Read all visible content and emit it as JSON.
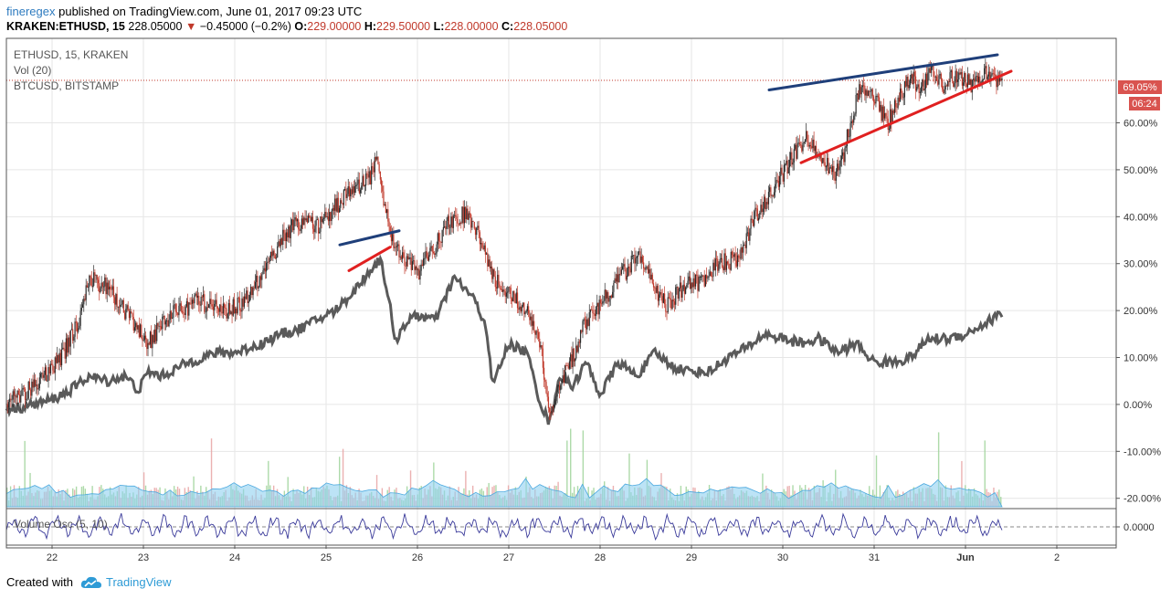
{
  "header": {
    "publisher": "fineregex",
    "published_text": "published on TradingView.com, June 01, 2017 09:23 UTC",
    "symbol": "KRAKEN:ETHUSD, 15",
    "last": "228.05000",
    "change": "−0.45000 (−0.2%)",
    "o_label": "O:",
    "o_value": "229.00000",
    "h_label": "H:",
    "h_value": "229.50000",
    "l_label": "L:",
    "l_value": "228.00000",
    "c_label": "C:",
    "c_value": "228.05000"
  },
  "legend": {
    "main": "ETHUSD, 15, KRAKEN",
    "vol": "Vol (20)",
    "compare": "BTCUSD, BITSTAMP",
    "oscillator": "Volume Osc (5, 10)"
  },
  "price_badge": "69.05%",
  "time_badge": "06:24",
  "colors": {
    "candle_up": "#2a2a2a",
    "candle_down": "#c0392b",
    "btc_line": "#5a5a5a",
    "trend_blue": "#1f3f7a",
    "trend_red": "#e02020",
    "volume_area": "#8fd0f0",
    "volume_bar_up": "#9fd39a",
    "volume_bar_down": "#e8a3a3",
    "osc_line": "#3a3a9a",
    "badge": "#d9534f"
  },
  "footer": {
    "created_with": "Created with",
    "brand": "TradingView"
  },
  "chart_data": {
    "type": "line",
    "ylabel": "",
    "y_unit": "%",
    "ylim": [
      -22,
      78
    ],
    "y_ticks": [
      "60.00%",
      "50.00%",
      "40.00%",
      "30.00%",
      "20.00%",
      "10.00%",
      "0.00%",
      "-10.00%",
      "-20.00%"
    ],
    "y_tick_values": [
      60,
      50,
      40,
      30,
      20,
      10,
      0,
      -10,
      -20
    ],
    "x_ticks": [
      "22",
      "23",
      "24",
      "25",
      "26",
      "27",
      "28",
      "29",
      "30",
      "31",
      "Jun",
      "2"
    ],
    "x_tick_values": [
      22,
      23,
      24,
      25,
      26,
      27,
      28,
      29,
      30,
      31,
      32,
      33
    ],
    "xlim": [
      21.5,
      33.65
    ],
    "grid": true,
    "series": [
      {
        "name": "ETHUSD, 15, KRAKEN",
        "style": "candles",
        "x": [
          21.5,
          21.8,
          22.1,
          22.3,
          22.4,
          22.6,
          22.8,
          22.95,
          23.05,
          23.3,
          23.6,
          23.9,
          24.1,
          24.3,
          24.5,
          24.7,
          24.9,
          25.1,
          25.3,
          25.5,
          25.55,
          25.7,
          25.85,
          26.0,
          26.2,
          26.35,
          26.55,
          26.75,
          26.85,
          27.0,
          27.2,
          27.35,
          27.45,
          27.55,
          27.7,
          27.85,
          27.95,
          28.1,
          28.3,
          28.45,
          28.6,
          28.75,
          28.9,
          29.1,
          29.3,
          29.5,
          29.7,
          29.9,
          30.05,
          30.25,
          30.4,
          30.55,
          30.65,
          30.75,
          30.85,
          31.0,
          31.15,
          31.3,
          31.4,
          31.5,
          31.6,
          31.75,
          31.9,
          32.05,
          32.2,
          32.25,
          32.35,
          32.4
        ],
        "values": [
          0,
          4,
          10,
          18,
          27,
          25,
          20,
          16,
          13,
          19,
          22,
          20,
          22,
          27,
          35,
          39,
          38,
          42,
          46,
          49,
          52,
          36,
          31,
          28,
          34,
          39,
          41,
          32,
          26,
          24,
          20,
          12,
          -3,
          4,
          10,
          18,
          20,
          24,
          29,
          32,
          24,
          21,
          25,
          26,
          30,
          31,
          40,
          46,
          51,
          57,
          53,
          49,
          52,
          61,
          67,
          65,
          60,
          66,
          70,
          67,
          71,
          68,
          70,
          68,
          70,
          71,
          68,
          69.05
        ]
      },
      {
        "name": "BTCUSD, BITSTAMP",
        "style": "line",
        "x": [
          21.5,
          21.7,
          22.0,
          22.2,
          22.4,
          22.6,
          22.8,
          22.95,
          23.05,
          23.2,
          23.5,
          23.8,
          24.0,
          24.3,
          24.5,
          24.7,
          24.9,
          25.1,
          25.3,
          25.5,
          25.6,
          25.7,
          25.75,
          25.85,
          26.0,
          26.2,
          26.4,
          26.6,
          26.75,
          26.82,
          27.0,
          27.2,
          27.35,
          27.45,
          27.55,
          27.7,
          27.85,
          28.0,
          28.2,
          28.4,
          28.6,
          28.8,
          29.0,
          29.2,
          29.4,
          29.6,
          29.8,
          30.0,
          30.2,
          30.4,
          30.6,
          30.8,
          31.0,
          31.2,
          31.4,
          31.6,
          31.8,
          32.0,
          32.2,
          32.4
        ],
        "values": [
          -1,
          -0.5,
          1,
          3,
          6,
          5,
          6,
          3,
          7,
          6,
          9,
          11,
          11,
          13,
          15,
          16,
          18,
          20,
          24,
          29,
          31,
          21,
          13,
          17,
          19,
          18,
          27,
          23,
          17,
          4,
          13,
          11,
          0,
          -4,
          6,
          4,
          9,
          2,
          9,
          6,
          11,
          8,
          7,
          7,
          10,
          12,
          15,
          14,
          13,
          14,
          11,
          13,
          9,
          9,
          10,
          14,
          14,
          15,
          17,
          19.5
        ]
      }
    ],
    "trendlines": [
      {
        "color": "blue",
        "x": [
          25.15,
          25.8
        ],
        "y": [
          34,
          37
        ]
      },
      {
        "color": "red",
        "x": [
          25.25,
          25.7
        ],
        "y": [
          28.5,
          33.5
        ]
      },
      {
        "color": "blue",
        "x": [
          29.85,
          32.35
        ],
        "y": [
          67,
          74.5
        ]
      },
      {
        "color": "red",
        "x": [
          30.2,
          32.5
        ],
        "y": [
          51.5,
          71
        ]
      }
    ],
    "volume": {
      "name": "Vol (20)",
      "note": "shown as histogram with moving average area at the bottom of the main pane"
    },
    "oscillator": {
      "name": "Volume Osc (5, 10)",
      "y_ticks": [
        "0.0000"
      ],
      "y_tick_values": [
        0
      ]
    }
  }
}
